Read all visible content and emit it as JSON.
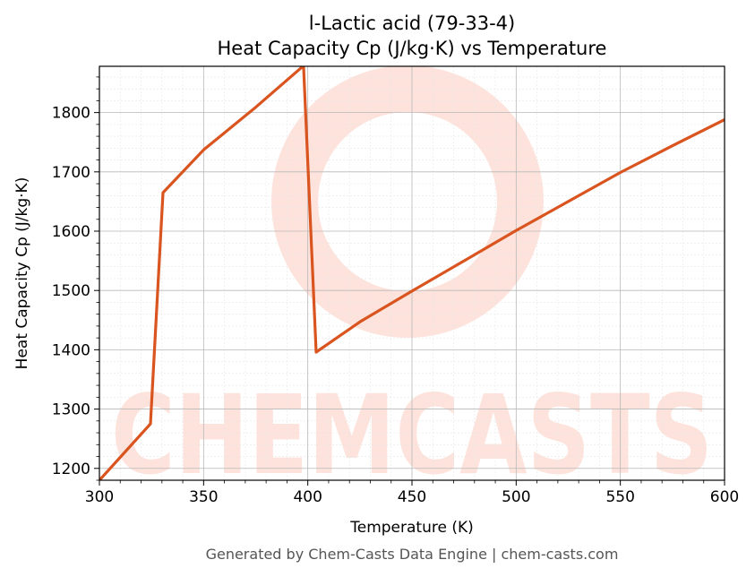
{
  "chart_data": {
    "type": "line",
    "title_lines": [
      "l-Lactic acid (79-33-4)",
      "Heat Capacity Cp (J/kg·K) vs Temperature"
    ],
    "xlabel": "Temperature (K)",
    "ylabel": "Heat Capacity Cp (J/kg·K)",
    "xlim": [
      300,
      600
    ],
    "ylim": [
      1180,
      1878
    ],
    "x_ticks": [
      300,
      350,
      400,
      450,
      500,
      550,
      600
    ],
    "y_ticks": [
      1200,
      1300,
      1400,
      1500,
      1600,
      1700,
      1800
    ],
    "grid": true,
    "series": [
      {
        "color": "#d9541e",
        "points": [
          [
            300,
            1180
          ],
          [
            324.5,
            1275
          ],
          [
            330.5,
            1665
          ],
          [
            350,
            1737
          ],
          [
            375,
            1809
          ],
          [
            397,
            1876
          ],
          [
            398,
            1876
          ],
          [
            404,
            1396
          ],
          [
            425,
            1447
          ],
          [
            450,
            1499
          ],
          [
            475,
            1550
          ],
          [
            500,
            1601
          ],
          [
            525,
            1650
          ],
          [
            550,
            1699
          ],
          [
            575,
            1744
          ],
          [
            600,
            1788
          ]
        ]
      }
    ]
  },
  "watermark": {
    "text": "CHEMCASTS",
    "color": "#fde3dc"
  },
  "footer": "Generated by Chem-Casts Data Engine | chem-casts.com"
}
